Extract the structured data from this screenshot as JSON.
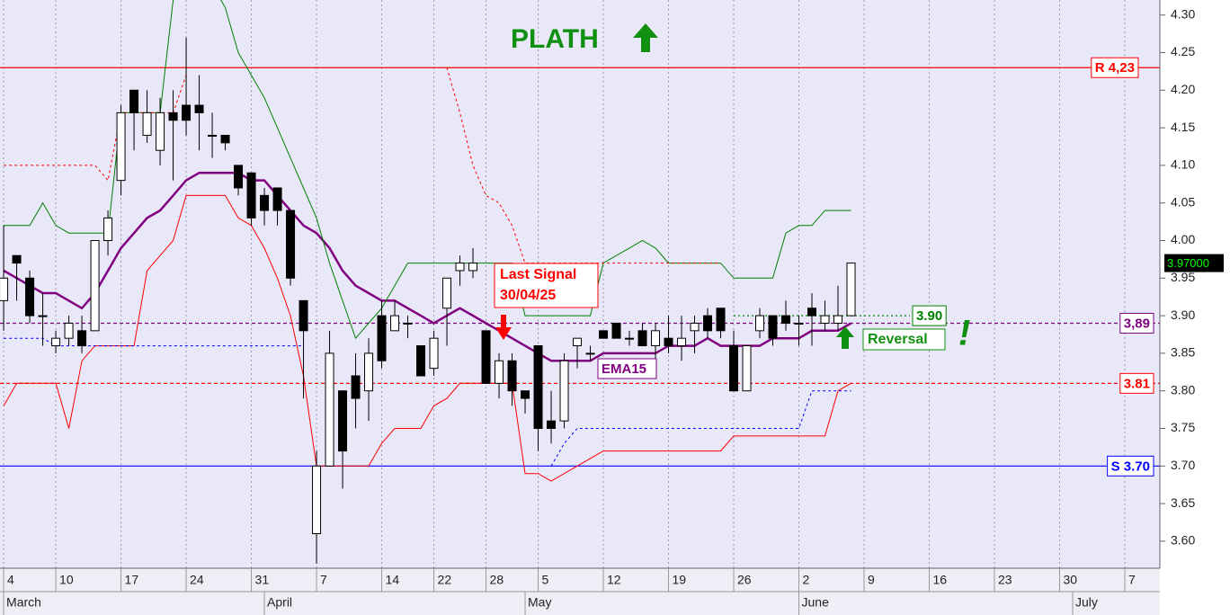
{
  "chart_data": {
    "type": "candlestick",
    "xlim": [
      -0.28,
      88.69
    ],
    "ylim": [
      3.564,
      4.32
    ],
    "xticks": [
      {
        "value": 0,
        "label": "4"
      },
      {
        "value": 4,
        "label": "10"
      },
      {
        "value": 9,
        "label": "17"
      },
      {
        "value": 14,
        "label": "24"
      },
      {
        "value": 19,
        "label": "31"
      },
      {
        "value": 24,
        "label": "7"
      },
      {
        "value": 29,
        "label": "14"
      },
      {
        "value": 33,
        "label": "22"
      },
      {
        "value": 37,
        "label": "28"
      },
      {
        "value": 41,
        "label": "5"
      },
      {
        "value": 46,
        "label": "12"
      },
      {
        "value": 51,
        "label": "19"
      },
      {
        "value": 56,
        "label": "26"
      },
      {
        "value": 61,
        "label": "2"
      },
      {
        "value": 66,
        "label": "9"
      },
      {
        "value": 71,
        "label": "16"
      },
      {
        "value": 76,
        "label": "23"
      },
      {
        "value": 81,
        "label": "30"
      },
      {
        "value": 86,
        "label": "7"
      }
    ],
    "months": [
      {
        "value": 0,
        "label": "March"
      },
      {
        "value": 20,
        "label": "April"
      },
      {
        "value": 40,
        "label": "May"
      },
      {
        "value": 61,
        "label": "June"
      },
      {
        "value": 82,
        "label": "July"
      }
    ],
    "yticks": [
      {
        "value": 3.6,
        "label": "3.60"
      },
      {
        "value": 3.65,
        "label": "3.65"
      },
      {
        "value": 3.7,
        "label": "3.70"
      },
      {
        "value": 3.75,
        "label": "3.75"
      },
      {
        "value": 3.8,
        "label": "3.80"
      },
      {
        "value": 3.85,
        "label": "3.85"
      },
      {
        "value": 3.9,
        "label": "3.90"
      },
      {
        "value": 3.95,
        "label": "3.95"
      },
      {
        "value": 4.0,
        "label": "4.00"
      },
      {
        "value": 4.05,
        "label": "4.05"
      },
      {
        "value": 4.1,
        "label": "4.10"
      },
      {
        "value": 4.15,
        "label": "4.15"
      },
      {
        "value": 4.2,
        "label": "4.20"
      },
      {
        "value": 4.25,
        "label": "4.25"
      },
      {
        "value": 4.3,
        "label": "4.30"
      }
    ],
    "grid": true,
    "candles": {
      "up_color": "#ffffff",
      "down_color": "#000000",
      "x": [
        0,
        1,
        2,
        3,
        4,
        5,
        6,
        7,
        8,
        9,
        10,
        11,
        12,
        13,
        14,
        15,
        16,
        17,
        18,
        19,
        20,
        21,
        22,
        23,
        24,
        25,
        26,
        27,
        28,
        29,
        30,
        31,
        32,
        33,
        34,
        35,
        36,
        37,
        38,
        39,
        40,
        41,
        42,
        43,
        44,
        45,
        46,
        47,
        48,
        49,
        50,
        51,
        52,
        53,
        54,
        55,
        56,
        57,
        58,
        59,
        60,
        61,
        62,
        63,
        64,
        65
      ],
      "open": [
        3.92,
        3.98,
        3.95,
        3.9,
        3.86,
        3.87,
        3.88,
        3.88,
        4.0,
        4.08,
        4.2,
        4.14,
        4.12,
        4.17,
        4.18,
        4.18,
        4.14,
        4.14,
        4.1,
        4.09,
        4.06,
        4.07,
        4.04,
        3.92,
        3.61,
        3.7,
        3.8,
        3.82,
        3.8,
        3.9,
        3.88,
        3.89,
        3.86,
        3.83,
        3.91,
        3.96,
        3.96,
        3.88,
        3.81,
        3.84,
        3.8,
        3.86,
        3.76,
        3.76,
        3.86,
        3.85,
        3.88,
        3.89,
        3.87,
        3.88,
        3.86,
        3.87,
        3.86,
        3.88,
        3.9,
        3.91,
        3.86,
        3.8,
        3.88,
        3.9,
        3.9,
        3.89,
        3.91,
        3.89,
        3.89,
        3.9
      ],
      "high": [
        4.02,
        3.98,
        3.96,
        3.93,
        3.88,
        3.9,
        3.9,
        4.0,
        4.04,
        4.18,
        4.2,
        4.2,
        4.19,
        4.2,
        4.27,
        4.22,
        4.17,
        4.14,
        4.1,
        4.09,
        4.07,
        4.07,
        4.04,
        3.92,
        3.72,
        3.88,
        3.8,
        3.85,
        3.87,
        3.92,
        3.92,
        3.9,
        3.86,
        3.88,
        3.95,
        3.98,
        3.99,
        3.88,
        3.85,
        3.85,
        3.8,
        3.86,
        3.8,
        3.85,
        3.87,
        3.86,
        3.88,
        3.89,
        3.88,
        3.89,
        3.89,
        3.9,
        3.9,
        3.9,
        3.91,
        3.91,
        3.88,
        3.86,
        3.91,
        3.9,
        3.92,
        3.9,
        3.93,
        3.92,
        3.94,
        3.97
      ],
      "low": [
        3.88,
        3.92,
        3.89,
        3.86,
        3.85,
        3.86,
        3.85,
        3.88,
        3.98,
        4.06,
        4.12,
        4.13,
        4.1,
        4.08,
        4.14,
        4.12,
        4.11,
        4.12,
        4.06,
        4.02,
        4.02,
        4.02,
        3.94,
        3.79,
        3.57,
        3.7,
        3.67,
        3.75,
        3.76,
        3.83,
        3.88,
        3.87,
        3.82,
        3.82,
        3.86,
        3.94,
        3.95,
        3.81,
        3.79,
        3.78,
        3.77,
        3.72,
        3.73,
        3.75,
        3.83,
        3.84,
        3.87,
        3.87,
        3.86,
        3.86,
        3.84,
        3.85,
        3.84,
        3.85,
        3.87,
        3.87,
        3.8,
        3.8,
        3.87,
        3.86,
        3.88,
        3.86,
        3.86,
        3.88,
        3.88,
        3.9
      ],
      "close": [
        3.95,
        3.97,
        3.9,
        3.9,
        3.87,
        3.89,
        3.86,
        4.0,
        4.03,
        4.17,
        4.17,
        4.17,
        4.17,
        4.16,
        4.16,
        4.17,
        4.14,
        4.13,
        4.07,
        4.03,
        4.04,
        4.04,
        3.95,
        3.88,
        3.7,
        3.85,
        3.72,
        3.79,
        3.85,
        3.84,
        3.9,
        3.89,
        3.82,
        3.87,
        3.95,
        3.97,
        3.97,
        3.81,
        3.84,
        3.8,
        3.79,
        3.75,
        3.75,
        3.84,
        3.87,
        3.85,
        3.87,
        3.87,
        3.87,
        3.86,
        3.88,
        3.86,
        3.87,
        3.89,
        3.88,
        3.88,
        3.8,
        3.86,
        3.9,
        3.87,
        3.89,
        3.89,
        3.9,
        3.9,
        3.9,
        3.97
      ]
    },
    "lines": [
      {
        "name": "EMA15",
        "color": "#800080",
        "width": 2.5,
        "dash": false,
        "values": [
          3.96,
          3.95,
          3.94,
          3.93,
          3.93,
          3.92,
          3.91,
          3.93,
          3.96,
          3.99,
          4.01,
          4.03,
          4.04,
          4.06,
          4.08,
          4.09,
          4.09,
          4.09,
          4.09,
          4.08,
          4.08,
          4.06,
          4.04,
          4.02,
          4.01,
          3.99,
          3.96,
          3.94,
          3.93,
          3.92,
          3.92,
          3.91,
          3.9,
          3.89,
          3.9,
          3.91,
          3.9,
          3.89,
          3.88,
          3.87,
          3.86,
          3.85,
          3.84,
          3.84,
          3.84,
          3.84,
          3.85,
          3.85,
          3.85,
          3.85,
          3.85,
          3.86,
          3.86,
          3.86,
          3.87,
          3.86,
          3.86,
          3.86,
          3.86,
          3.87,
          3.87,
          3.87,
          3.88,
          3.88,
          3.88,
          3.89
        ]
      },
      {
        "color": "#008000",
        "width": 1,
        "dash": false,
        "values": [
          4.02,
          4.02,
          4.02,
          4.05,
          4.02,
          4.01,
          4.01,
          4.01,
          4.01,
          4.17,
          4.17,
          4.17,
          4.17,
          4.32,
          4.34,
          4.34,
          4.34,
          4.31,
          4.25,
          4.22,
          4.19,
          4.15,
          4.11,
          4.07,
          4.03,
          3.97,
          3.92,
          3.87,
          3.89,
          3.91,
          3.94,
          3.97,
          3.97,
          3.97,
          3.97,
          3.97,
          3.97,
          3.97,
          3.97,
          3.97,
          3.9,
          3.9,
          3.9,
          3.9,
          3.9,
          3.9,
          3.97,
          3.98,
          3.99,
          4.0,
          3.99,
          3.97,
          3.97,
          3.97,
          3.97,
          3.97,
          3.95,
          3.95,
          3.95,
          3.95,
          4.01,
          4.02,
          4.02,
          4.04,
          4.04,
          4.04
        ]
      },
      {
        "color": "#ff0000",
        "width": 1,
        "dash": false,
        "values": [
          3.78,
          3.81,
          3.81,
          3.81,
          3.81,
          3.75,
          3.84,
          3.86,
          3.86,
          3.86,
          3.86,
          3.96,
          3.98,
          4.0,
          4.06,
          4.06,
          4.06,
          4.06,
          4.03,
          4.02,
          3.99,
          3.95,
          3.9,
          3.82,
          3.7,
          3.7,
          3.7,
          3.7,
          3.7,
          3.73,
          3.75,
          3.75,
          3.75,
          3.78,
          3.79,
          3.81,
          3.81,
          3.81,
          3.81,
          3.81,
          3.69,
          3.69,
          3.68,
          3.69,
          3.7,
          3.71,
          3.72,
          3.72,
          3.72,
          3.72,
          3.72,
          3.72,
          3.72,
          3.72,
          3.72,
          3.72,
          3.74,
          3.74,
          3.74,
          3.74,
          3.74,
          3.74,
          3.74,
          3.74,
          3.8,
          3.81
        ]
      },
      {
        "color": "#ff0000",
        "width": 1,
        "dash": true,
        "values": [
          4.1,
          4.1,
          4.1,
          4.1,
          4.1,
          4.1,
          4.1,
          4.1,
          4.08,
          4.17,
          4.17,
          4.17,
          4.17,
          4.17,
          4.22,
          null,
          null,
          null,
          null,
          null,
          null,
          null,
          null,
          null,
          null,
          null,
          null,
          null,
          null,
          null,
          null,
          null,
          null,
          null,
          4.23,
          4.17,
          4.1,
          4.06,
          4.05,
          4.02,
          3.97,
          3.97,
          3.97,
          3.97,
          3.97,
          3.97,
          3.97,
          3.97,
          3.97,
          3.97,
          3.97,
          3.97,
          3.97,
          3.97,
          3.97,
          3.97,
          null,
          null,
          null,
          null,
          null,
          null,
          null,
          null,
          null,
          null
        ]
      },
      {
        "color": "#0000ff",
        "width": 1,
        "dash": true,
        "values": [
          3.87,
          3.87,
          3.87,
          3.87,
          3.86,
          3.86,
          3.86,
          3.86,
          3.86,
          3.86,
          3.86,
          3.86,
          3.86,
          3.86,
          3.86,
          3.86,
          3.86,
          3.86,
          3.86,
          3.86,
          3.86,
          3.86,
          3.86,
          3.86,
          null,
          null,
          null,
          null,
          null,
          null,
          null,
          null,
          null,
          null,
          null,
          null,
          null,
          null,
          null,
          null,
          null,
          null,
          3.7,
          3.73,
          3.75,
          3.75,
          3.75,
          3.75,
          3.75,
          3.75,
          3.75,
          3.75,
          3.75,
          3.75,
          3.75,
          3.75,
          3.75,
          3.75,
          3.75,
          3.75,
          3.75,
          3.75,
          3.8,
          3.8,
          3.8,
          3.8
        ]
      }
    ],
    "levels": [
      {
        "value": 4.23,
        "label": "R 4,23",
        "color": "#ff0000",
        "style": "solid"
      },
      {
        "value": 3.81,
        "label": "3.81",
        "color": "#ff0000",
        "style": "dashed"
      },
      {
        "value": 3.89,
        "label": "3,89",
        "color": "#800080",
        "style": "dashed"
      },
      {
        "value": 3.7,
        "label": "S 3.70",
        "color": "#0000ff",
        "style": "solid"
      },
      {
        "value": 3.9,
        "label": "3.90",
        "color": "#008000",
        "style": "dotted"
      }
    ],
    "last_price": {
      "value": 3.97,
      "label": "3.97000"
    },
    "annotations": {
      "title": "PLATH",
      "signal": [
        "Last Signal",
        "30/04/25"
      ],
      "reversal": "Reversal",
      "exclaim": "!"
    }
  }
}
